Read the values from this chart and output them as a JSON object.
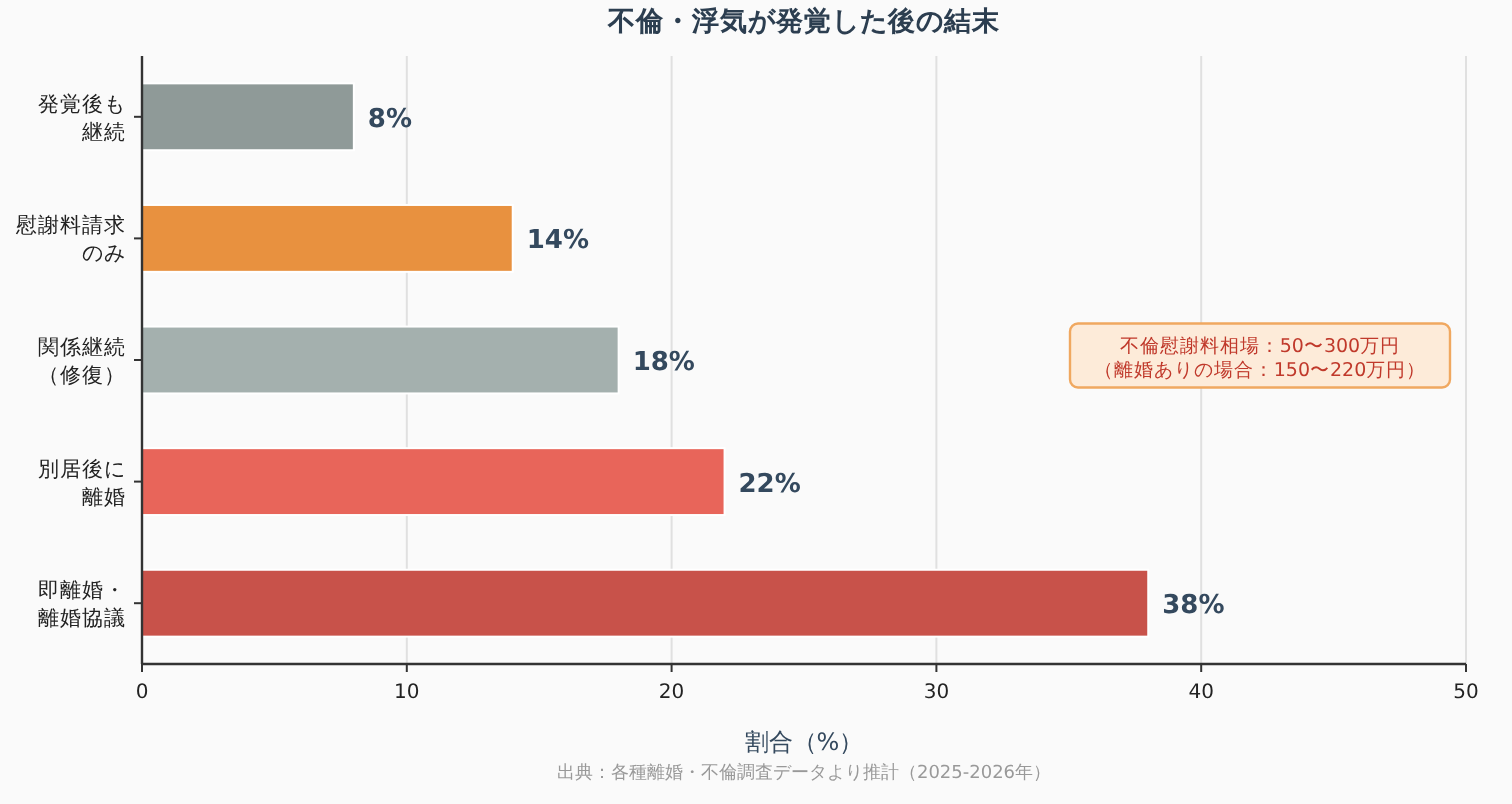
{
  "chart_data": {
    "type": "bar",
    "orientation": "horizontal",
    "title": "不倫・浮気が発覚した後の結末",
    "xlabel": "割合（%）",
    "categories": [
      "発覚後も継続",
      "慰謝料請求のみ",
      "関係継続（修復）",
      "別居後に離婚",
      "即離婚・離婚協議"
    ],
    "values": [
      8,
      14,
      18,
      22,
      38
    ],
    "colors": [
      "#8f9a98",
      "#e8913f",
      "#a4b0ae",
      "#e8655a",
      "#c8524a"
    ],
    "value_labels": [
      "8%",
      "14%",
      "18%",
      "22%",
      "38%"
    ],
    "xlim": [
      0,
      50
    ],
    "xticks": [
      0,
      10,
      20,
      30,
      40,
      50
    ],
    "grid": "x",
    "annotations": [
      "不倫慰謝料相場：50〜300万円（離婚ありの場合：150〜220万円）",
      "出典：各種離婚・不倫調査データより推計（2025-2026年）"
    ]
  }
}
